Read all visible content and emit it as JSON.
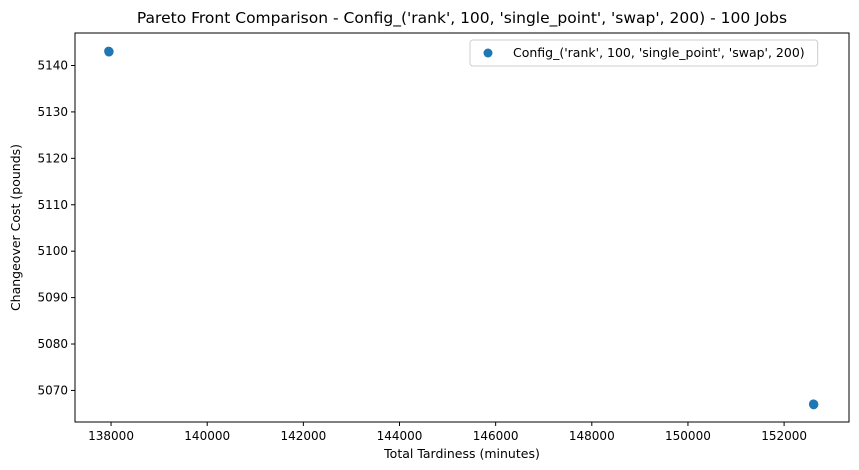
{
  "chart_data": {
    "type": "scatter",
    "title": "Pareto Front Comparison - Config_('rank', 100, 'single_point', 'swap', 200) - 100 Jobs",
    "xlabel": "Total Tardiness (minutes)",
    "ylabel": "Changeover Cost (pounds)",
    "xlim": [
      137250,
      153350
    ],
    "ylim": [
      5063.2,
      5147.0
    ],
    "xticks": [
      138000,
      140000,
      142000,
      144000,
      146000,
      148000,
      150000,
      152000
    ],
    "yticks": [
      5070,
      5080,
      5090,
      5100,
      5110,
      5120,
      5130,
      5140
    ],
    "grid": false,
    "legend_position": "top-right",
    "series": [
      {
        "name": "Config_('rank', 100, 'single_point', 'swap', 200)",
        "color": "#1f77b4",
        "points": [
          {
            "x": 137950,
            "y": 5143.1
          },
          {
            "x": 137960,
            "y": 5143.0
          },
          {
            "x": 137955,
            "y": 5142.9
          },
          {
            "x": 152610,
            "y": 5067.1
          },
          {
            "x": 152620,
            "y": 5067.0
          },
          {
            "x": 152615,
            "y": 5066.9
          }
        ]
      }
    ]
  }
}
